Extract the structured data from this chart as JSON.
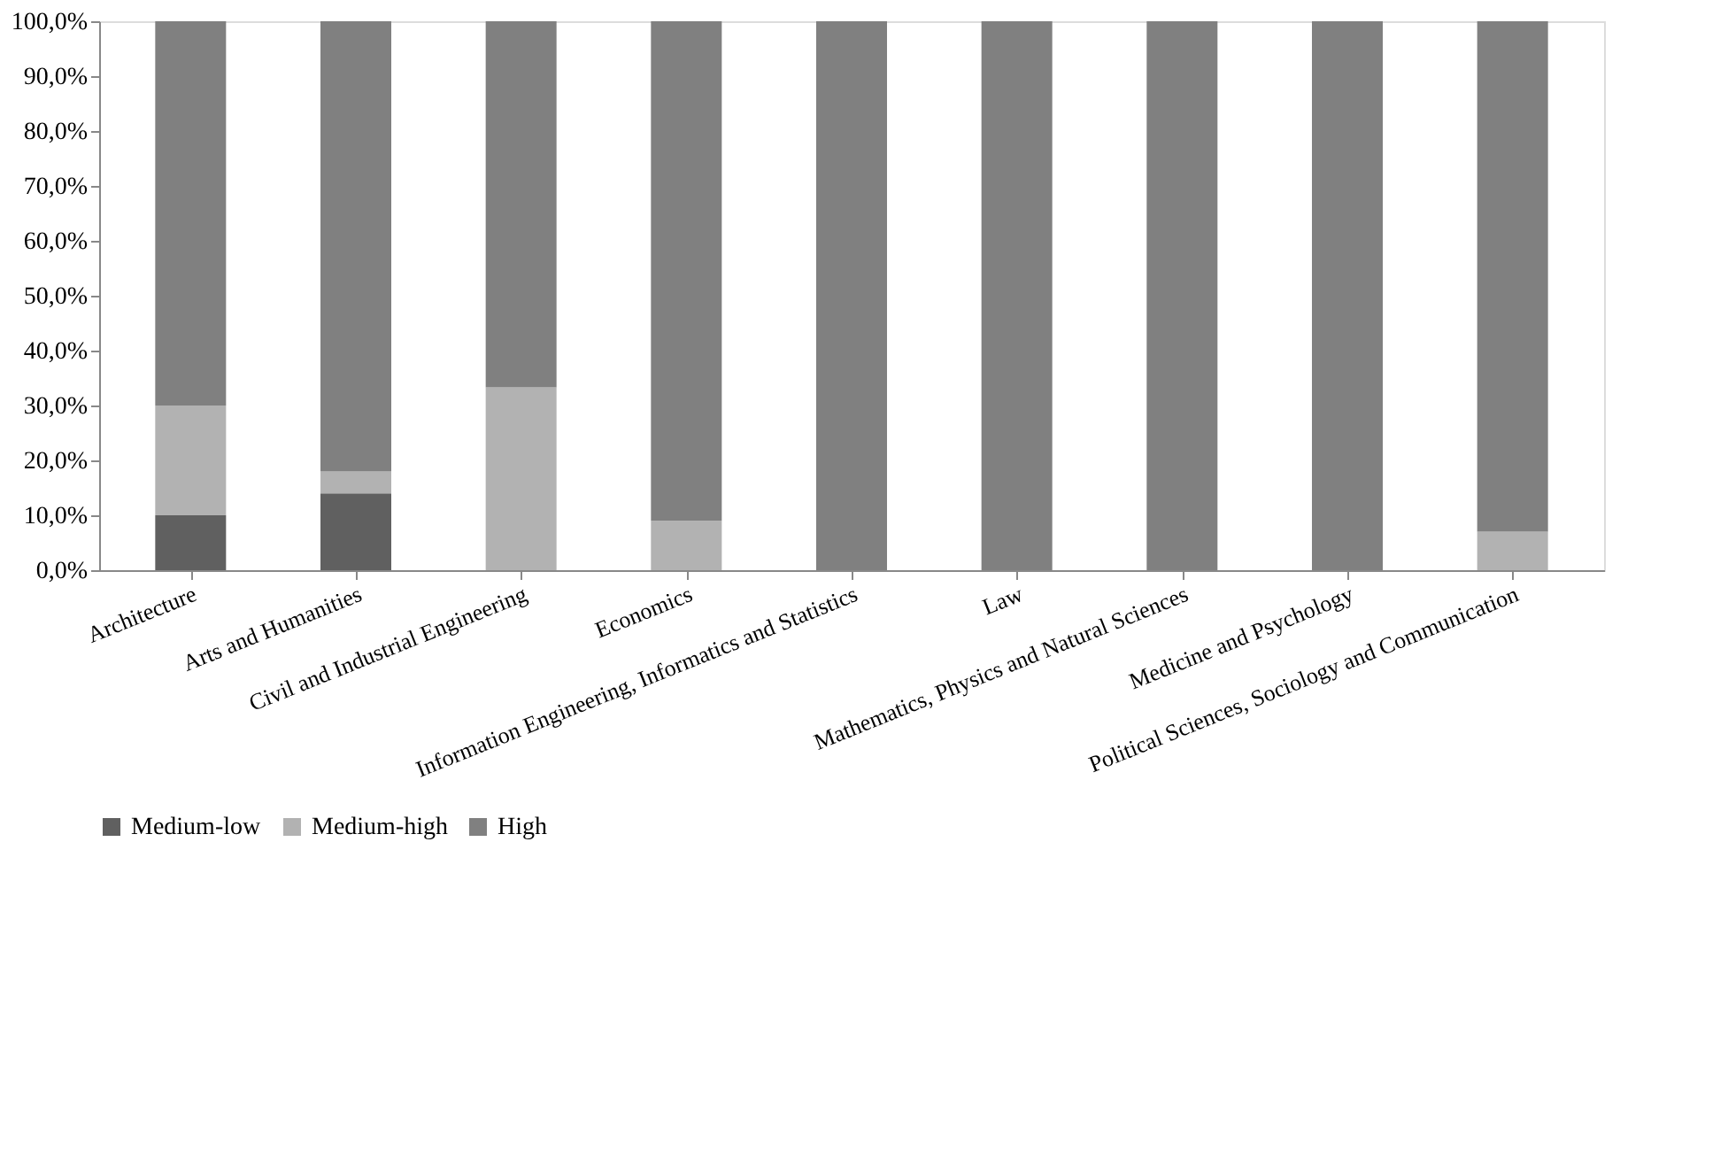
{
  "chart_data": {
    "type": "bar",
    "stacked": true,
    "categories": [
      "Architecture",
      "Arts and Humanities",
      "Civil and Industrial Engineering",
      "Economics",
      "Information Engineering, Informatics and Statistics",
      "Law",
      "Mathematics, Physics and Natural Sciences",
      "Medicine and Psychology",
      "Political Sciences, Sociology and Communication"
    ],
    "series": [
      {
        "name": "Medium-low",
        "color": "#606060",
        "values": [
          10,
          14,
          0,
          0,
          0,
          0,
          0,
          0,
          0
        ]
      },
      {
        "name": "Medium-high",
        "color": "#b2b2b2",
        "values": [
          20,
          4,
          33.3,
          9,
          0,
          0,
          0,
          0,
          7
        ]
      },
      {
        "name": "High",
        "color": "#808080",
        "values": [
          70,
          82,
          66.7,
          91,
          100,
          100,
          100,
          100,
          93
        ]
      }
    ],
    "ylim": [
      0,
      100
    ],
    "yticks": [
      {
        "value": 0,
        "label": "0,0%"
      },
      {
        "value": 10,
        "label": "10,0%"
      },
      {
        "value": 20,
        "label": "20,0%"
      },
      {
        "value": 30,
        "label": "30,0%"
      },
      {
        "value": 40,
        "label": "40,0%"
      },
      {
        "value": 50,
        "label": "50,0%"
      },
      {
        "value": 60,
        "label": "60,0%"
      },
      {
        "value": 70,
        "label": "70,0%"
      },
      {
        "value": 80,
        "label": "80,0%"
      },
      {
        "value": 90,
        "label": "90,0%"
      },
      {
        "value": 100,
        "label": "100,0%"
      }
    ],
    "grid": false,
    "legend": "bottom"
  }
}
